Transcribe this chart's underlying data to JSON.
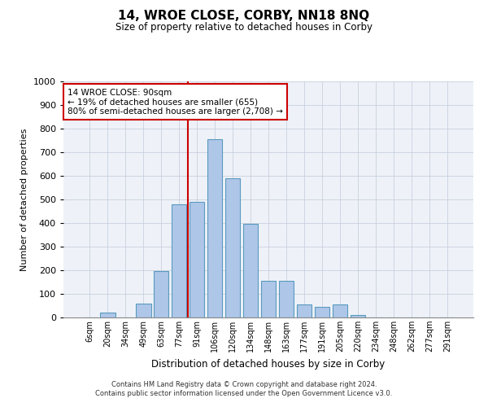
{
  "title": "14, WROE CLOSE, CORBY, NN18 8NQ",
  "subtitle": "Size of property relative to detached houses in Corby",
  "xlabel": "Distribution of detached houses by size in Corby",
  "ylabel": "Number of detached properties",
  "categories": [
    "6sqm",
    "20sqm",
    "34sqm",
    "49sqm",
    "63sqm",
    "77sqm",
    "91sqm",
    "106sqm",
    "120sqm",
    "134sqm",
    "148sqm",
    "163sqm",
    "177sqm",
    "191sqm",
    "205sqm",
    "220sqm",
    "234sqm",
    "248sqm",
    "262sqm",
    "277sqm",
    "291sqm"
  ],
  "values": [
    0,
    20,
    0,
    60,
    195,
    480,
    490,
    755,
    590,
    395,
    155,
    155,
    55,
    45,
    55,
    10,
    0,
    0,
    0,
    0,
    0
  ],
  "bar_color": "#aec6e8",
  "bar_edge_color": "#5a9abf",
  "vline_color": "#cc0000",
  "annotation_text": "14 WROE CLOSE: 90sqm\n← 19% of detached houses are smaller (655)\n80% of semi-detached houses are larger (2,708) →",
  "annotation_box_color": "#ffffff",
  "annotation_box_edge": "#cc0000",
  "ylim": [
    0,
    1000
  ],
  "yticks": [
    0,
    100,
    200,
    300,
    400,
    500,
    600,
    700,
    800,
    900,
    1000
  ],
  "background_color": "#eef2f8",
  "footer_line1": "Contains HM Land Registry data © Crown copyright and database right 2024.",
  "footer_line2": "Contains public sector information licensed under the Open Government Licence v3.0."
}
